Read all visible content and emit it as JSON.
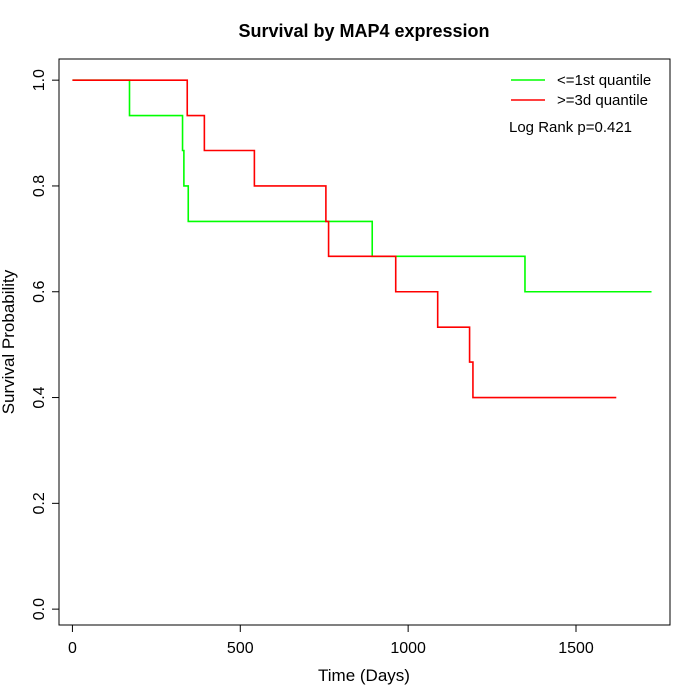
{
  "chart_data": {
    "type": "line",
    "title": "Survival by MAP4 expression",
    "xlabel": "Time (Days)",
    "ylabel": "Survival Probability",
    "xlim": [
      -40,
      1780
    ],
    "ylim": [
      -0.03,
      1.04
    ],
    "x_ticks": [
      0,
      500,
      1000,
      1500
    ],
    "y_ticks": [
      0.0,
      0.2,
      0.4,
      0.6,
      0.8,
      1.0
    ],
    "x_tick_labels": [
      "0",
      "500",
      "1000",
      "1500"
    ],
    "y_tick_labels": [
      "0.0",
      "0.2",
      "0.4",
      "0.6",
      "0.8",
      "1.0"
    ],
    "grid": false,
    "legend_position": "top-right",
    "annotation": "Log Rank p=0.421",
    "series": [
      {
        "name": "<=1st quantile",
        "color": "#00ff00",
        "step_times": [
          0,
          170,
          328,
          332,
          345,
          893,
          1348,
          1725
        ],
        "step_values": [
          1.0,
          0.933,
          0.867,
          0.8,
          0.733,
          0.667,
          0.6,
          0.6
        ]
      },
      {
        "name": ">=3d quantile",
        "color": "#ff0000",
        "step_times": [
          0,
          342,
          393,
          542,
          755,
          763,
          963,
          1088,
          1183,
          1193,
          1620
        ],
        "step_values": [
          1.0,
          0.933,
          0.867,
          0.8,
          0.733,
          0.667,
          0.6,
          0.533,
          0.467,
          0.4,
          0.4
        ]
      }
    ]
  }
}
